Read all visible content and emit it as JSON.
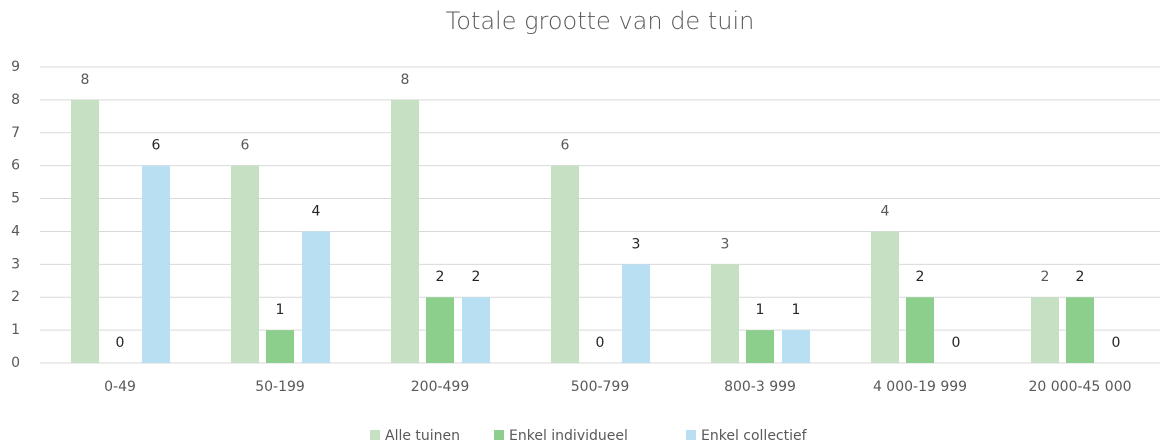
{
  "chart_data": {
    "type": "bar",
    "title": "Totale grootte van de tuin",
    "categories": [
      "0-49",
      "50-199",
      "200-499",
      "500-799",
      "800-3 999",
      "4 000-19 999",
      "20 000-45 000"
    ],
    "series": [
      {
        "name": "Alle tuinen",
        "color": "#c5e0c3",
        "values": [
          8,
          6,
          8,
          6,
          3,
          4,
          2
        ]
      },
      {
        "name": "Enkel individueel",
        "color": "#8ccf8c",
        "values": [
          0,
          1,
          2,
          0,
          1,
          2,
          2
        ]
      },
      {
        "name": "Enkel collectief",
        "color": "#b9dff2",
        "values": [
          6,
          4,
          2,
          3,
          1,
          0,
          0
        ]
      }
    ],
    "ylim": [
      0,
      9
    ],
    "yticks": [
      0,
      1,
      2,
      3,
      4,
      5,
      6,
      7,
      8,
      9
    ],
    "grid": true,
    "legend": "bottom"
  }
}
